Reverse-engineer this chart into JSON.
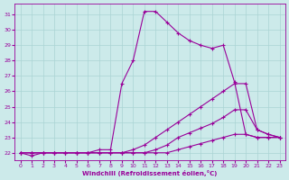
{
  "xlabel": "Windchill (Refroidissement éolien,°C)",
  "bg_color": "#cceaea",
  "line_color": "#990099",
  "grid_color": "#aad4d4",
  "xlim_min": -0.5,
  "xlim_max": 23.5,
  "ylim_min": 21.5,
  "ylim_max": 31.7,
  "yticks": [
    22,
    23,
    24,
    25,
    26,
    27,
    28,
    29,
    30,
    31
  ],
  "xticks": [
    0,
    1,
    2,
    3,
    4,
    5,
    6,
    7,
    8,
    9,
    10,
    11,
    12,
    13,
    14,
    15,
    16,
    17,
    18,
    19,
    20,
    21,
    22,
    23
  ],
  "series": [
    {
      "x": [
        0,
        1,
        2,
        3,
        4,
        5,
        6,
        7,
        8,
        9,
        10,
        11,
        12,
        13,
        14,
        15,
        16,
        17,
        18,
        19,
        20,
        21,
        22,
        23
      ],
      "y": [
        22.0,
        21.8,
        22.0,
        22.0,
        22.0,
        22.0,
        22.0,
        22.2,
        22.2,
        26.5,
        28.0,
        31.2,
        31.2,
        30.5,
        29.8,
        29.3,
        29.0,
        28.8,
        29.0,
        26.6,
        23.2,
        23.0,
        23.0,
        23.0
      ]
    },
    {
      "x": [
        0,
        1,
        2,
        3,
        4,
        5,
        6,
        7,
        8,
        9,
        10,
        11,
        12,
        13,
        14,
        15,
        16,
        17,
        18,
        19,
        20,
        21,
        22,
        23
      ],
      "y": [
        22.0,
        22.0,
        22.0,
        22.0,
        22.0,
        22.0,
        22.0,
        22.0,
        22.0,
        22.0,
        22.2,
        22.5,
        23.0,
        23.5,
        24.0,
        24.5,
        25.0,
        25.5,
        26.0,
        26.5,
        26.5,
        23.5,
        23.2,
        23.0
      ]
    },
    {
      "x": [
        0,
        1,
        2,
        3,
        4,
        5,
        6,
        7,
        8,
        9,
        10,
        11,
        12,
        13,
        14,
        15,
        16,
        17,
        18,
        19,
        20,
        21,
        22,
        23
      ],
      "y": [
        22.0,
        22.0,
        22.0,
        22.0,
        22.0,
        22.0,
        22.0,
        22.0,
        22.0,
        22.0,
        22.0,
        22.0,
        22.2,
        22.5,
        23.0,
        23.3,
        23.6,
        23.9,
        24.3,
        24.8,
        24.8,
        23.5,
        23.2,
        23.0
      ]
    },
    {
      "x": [
        0,
        1,
        2,
        3,
        4,
        5,
        6,
        7,
        8,
        9,
        10,
        11,
        12,
        13,
        14,
        15,
        16,
        17,
        18,
        19,
        20,
        21,
        22,
        23
      ],
      "y": [
        22.0,
        22.0,
        22.0,
        22.0,
        22.0,
        22.0,
        22.0,
        22.0,
        22.0,
        22.0,
        22.0,
        22.0,
        22.0,
        22.0,
        22.2,
        22.4,
        22.6,
        22.8,
        23.0,
        23.2,
        23.2,
        23.0,
        23.0,
        23.0
      ]
    }
  ]
}
